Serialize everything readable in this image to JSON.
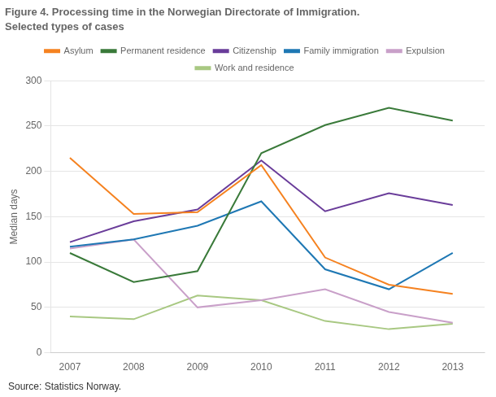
{
  "chart_data": {
    "type": "line",
    "title": "Figure 4. Processing time in the Norwegian Directorate of Immigration.",
    "subtitle": "Selected types of cases",
    "y_label": "Median days",
    "annotations": [
      "Source: Statistics Norway."
    ],
    "x": [
      2007,
      2008,
      2009,
      2010,
      2011,
      2012,
      2013
    ],
    "series": [
      {
        "name": "Asylum",
        "color": "#f58220",
        "values": [
          215,
          153,
          155,
          207,
          105,
          75,
          65
        ]
      },
      {
        "name": "Permanent residence",
        "color": "#3a7a3a",
        "values": [
          110,
          78,
          90,
          220,
          251,
          270,
          256
        ]
      },
      {
        "name": "Citizenship",
        "color": "#6a3d9a",
        "values": [
          122,
          145,
          158,
          212,
          156,
          176,
          163
        ]
      },
      {
        "name": "Family immigration",
        "color": "#1f78b4",
        "values": [
          117,
          125,
          140,
          167,
          92,
          70,
          110
        ]
      },
      {
        "name": "Expulsion",
        "color": "#c9a0c9",
        "values": [
          115,
          125,
          50,
          58,
          70,
          45,
          33
        ]
      },
      {
        "name": "Work and residence",
        "color": "#a8c882",
        "values": [
          40,
          37,
          63,
          58,
          35,
          26,
          32
        ]
      }
    ],
    "xlim": [
      2006.7,
      2013.5
    ],
    "xticks": [
      2007,
      2008,
      2009,
      2010,
      2011,
      2012,
      2013
    ],
    "ylim": [
      0,
      300
    ],
    "yticks": [
      0,
      50,
      100,
      150,
      200,
      250,
      300
    ],
    "grid": true,
    "legend": "top"
  }
}
